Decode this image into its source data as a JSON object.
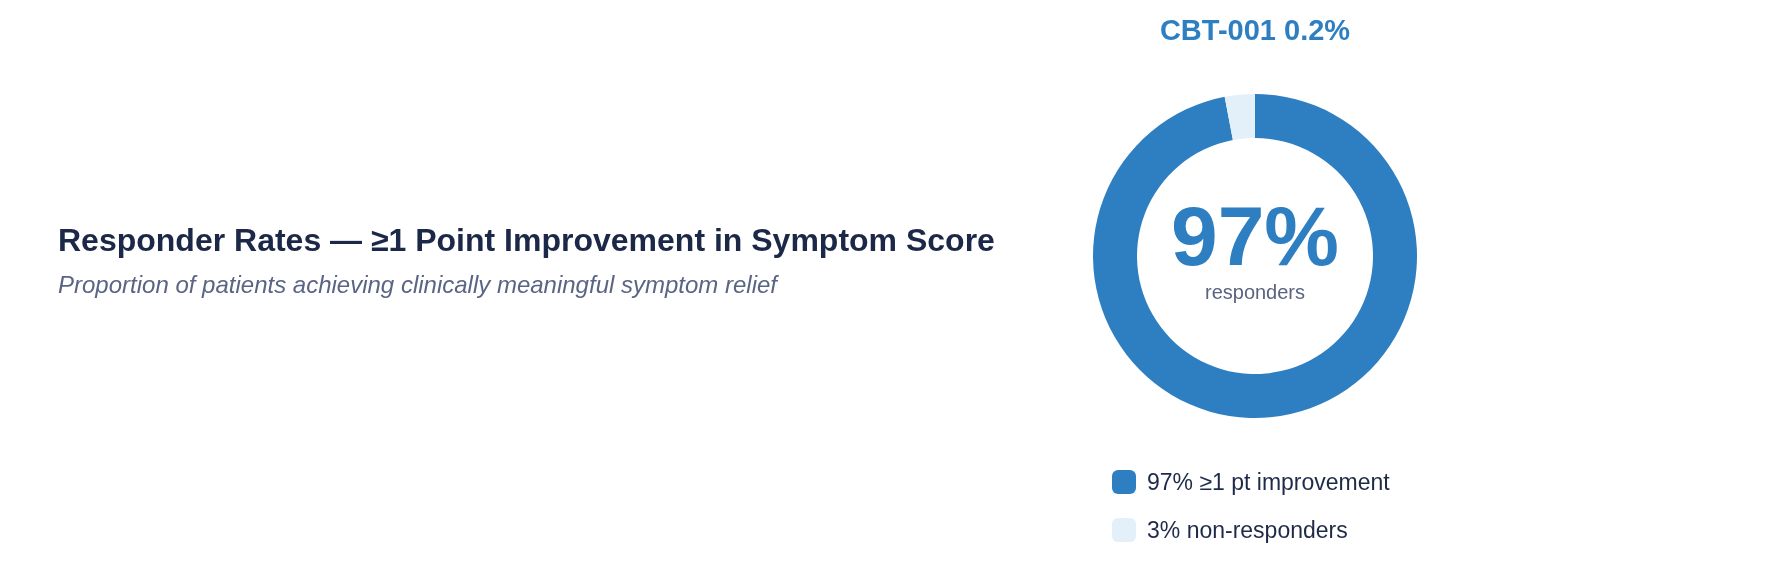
{
  "chart_data": {
    "type": "donut",
    "title": "Responder Rates — ≥1 Point Improvement in Symptom Score",
    "subtitle": "Proportion of patients achieving clinically meaningful symptom relief",
    "annotations": [
      "CBT-001 0.2%",
      "97%",
      "responders"
    ],
    "categories": [
      "97% ≥1 pt improvement",
      "3% non-responders"
    ],
    "values": [
      97,
      3
    ],
    "colors": [
      "#2e7fc1",
      "#e3eff9"
    ],
    "legend": "bottom"
  }
}
